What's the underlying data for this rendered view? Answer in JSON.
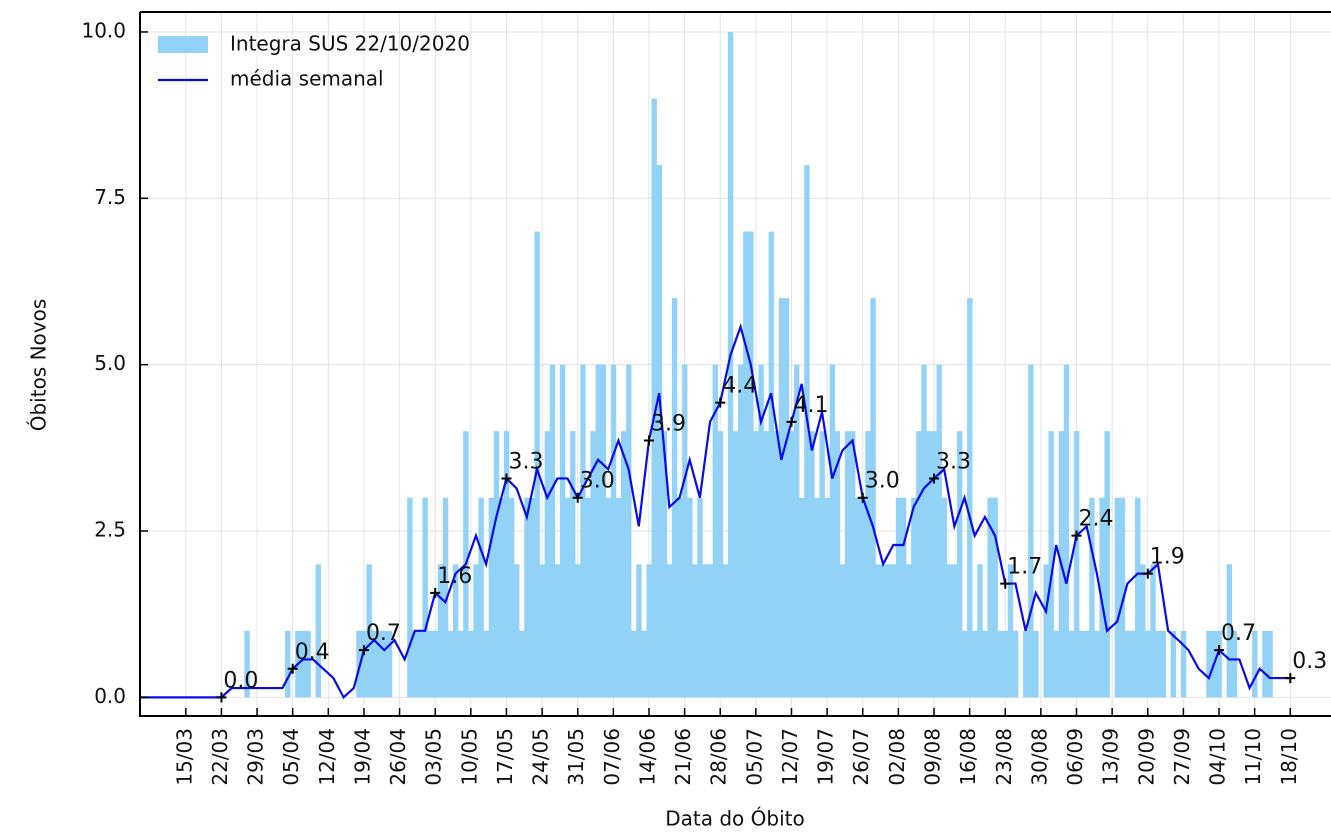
{
  "chart_data": {
    "type": "bar_line",
    "xlabel": "Data do Óbito",
    "ylabel": "Óbitos Novos",
    "xlim": [
      66,
      300
    ],
    "ylim": [
      -0.28,
      10.3
    ],
    "xticks": [
      {
        "value": 75,
        "label": "15/03"
      },
      {
        "value": 82,
        "label": "22/03"
      },
      {
        "value": 89,
        "label": "29/03"
      },
      {
        "value": 96,
        "label": "05/04"
      },
      {
        "value": 103,
        "label": "12/04"
      },
      {
        "value": 110,
        "label": "19/04"
      },
      {
        "value": 117,
        "label": "26/04"
      },
      {
        "value": 124,
        "label": "03/05"
      },
      {
        "value": 131,
        "label": "10/05"
      },
      {
        "value": 138,
        "label": "17/05"
      },
      {
        "value": 145,
        "label": "24/05"
      },
      {
        "value": 152,
        "label": "31/05"
      },
      {
        "value": 159,
        "label": "07/06"
      },
      {
        "value": 166,
        "label": "14/06"
      },
      {
        "value": 173,
        "label": "21/06"
      },
      {
        "value": 180,
        "label": "28/06"
      },
      {
        "value": 187,
        "label": "05/07"
      },
      {
        "value": 194,
        "label": "12/07"
      },
      {
        "value": 201,
        "label": "19/07"
      },
      {
        "value": 208,
        "label": "26/07"
      },
      {
        "value": 215,
        "label": "02/08"
      },
      {
        "value": 222,
        "label": "09/08"
      },
      {
        "value": 229,
        "label": "16/08"
      },
      {
        "value": 236,
        "label": "23/08"
      },
      {
        "value": 243,
        "label": "30/08"
      },
      {
        "value": 250,
        "label": "06/09"
      },
      {
        "value": 257,
        "label": "13/09"
      },
      {
        "value": 264,
        "label": "20/09"
      },
      {
        "value": 271,
        "label": "27/09"
      },
      {
        "value": 278,
        "label": "04/10"
      },
      {
        "value": 285,
        "label": "11/10"
      },
      {
        "value": 292,
        "label": "18/10"
      }
    ],
    "yticks": [
      {
        "value": 0,
        "label": "0.0"
      },
      {
        "value": 2.5,
        "label": "2.5"
      },
      {
        "value": 5,
        "label": "5.0"
      },
      {
        "value": 7.5,
        "label": "7.5"
      },
      {
        "value": 10,
        "label": "10.0"
      }
    ],
    "grid": true,
    "legend": "upper left",
    "bars": {
      "name": "Integra SUS 22/10/2020",
      "color": "#92d2f7",
      "x0": 82,
      "values": [
        0,
        0,
        0,
        0,
        0,
        1,
        0,
        0,
        0,
        0,
        0,
        0,
        0,
        1,
        0,
        1,
        1,
        1,
        0,
        2,
        0,
        0,
        0,
        0,
        0,
        0,
        0,
        1,
        1,
        2,
        1,
        1,
        1,
        1,
        0,
        0,
        0,
        3,
        1,
        1,
        3,
        1,
        1,
        2,
        3,
        1,
        2,
        1,
        4,
        1,
        2,
        3,
        1,
        3,
        4,
        3,
        4,
        3,
        2,
        1,
        3,
        3,
        7,
        2,
        4,
        5,
        2,
        5,
        3,
        4,
        2,
        5,
        3,
        4,
        5,
        5,
        3,
        5,
        3,
        4,
        5,
        1,
        2,
        1,
        2,
        9,
        8,
        4,
        2,
        6,
        3,
        5,
        3,
        2,
        3,
        2,
        2,
        5,
        4,
        2,
        10,
        4,
        5,
        7,
        7,
        4,
        5,
        4,
        7,
        4,
        6,
        6,
        4,
        5,
        3,
        8,
        4,
        3,
        4,
        3,
        5,
        4,
        2,
        4,
        4,
        3,
        3,
        4,
        6,
        2,
        2,
        2,
        2,
        3,
        3,
        2,
        3,
        4,
        5,
        4,
        4,
        5,
        3,
        2,
        2,
        4,
        1,
        6,
        1,
        2,
        1,
        3,
        3,
        1,
        1,
        2,
        1,
        0,
        1,
        5,
        1,
        0,
        2,
        4,
        1,
        4,
        5,
        1,
        4,
        1,
        1,
        3,
        1,
        3,
        4,
        0,
        3,
        3,
        1,
        1,
        3,
        2,
        1,
        2,
        1,
        1,
        0,
        1,
        0,
        1,
        0,
        0,
        0,
        0,
        1,
        1,
        1,
        0,
        2,
        1,
        0,
        0,
        0,
        1,
        0,
        1,
        1,
        0,
        0,
        0,
        0
      ]
    },
    "series": [
      {
        "name": "média  semanal",
        "color": "#0a0aee",
        "x": [
          66,
          82,
          84,
          86,
          88,
          90,
          92,
          94,
          96,
          98,
          100,
          102,
          104,
          106,
          108,
          110,
          112,
          114,
          116,
          118,
          120,
          122,
          124,
          126,
          128,
          130,
          132,
          134,
          136,
          138,
          140,
          142,
          144,
          146,
          148,
          150,
          152,
          154,
          156,
          158,
          160,
          162,
          164,
          166,
          168,
          170,
          172,
          174,
          176,
          178,
          180,
          182,
          184,
          186,
          188,
          190,
          192,
          194,
          196,
          198,
          200,
          202,
          204,
          206,
          208,
          210,
          212,
          214,
          216,
          218,
          220,
          222,
          224,
          226,
          228,
          230,
          232,
          234,
          236,
          238,
          240,
          242,
          244,
          246,
          248,
          250,
          252,
          254,
          256,
          258,
          260,
          262,
          264,
          266,
          268,
          270,
          272,
          274,
          276,
          278,
          280,
          282,
          284,
          286,
          288,
          290,
          292
        ],
        "values": [
          0,
          0,
          0.14,
          0.14,
          0.14,
          0.14,
          0.14,
          0.14,
          0.43,
          0.57,
          0.57,
          0.43,
          0.29,
          0,
          0.14,
          0.71,
          0.86,
          0.71,
          0.86,
          0.57,
          1.0,
          1.0,
          1.57,
          1.43,
          1.86,
          2.0,
          2.43,
          2.0,
          2.71,
          3.29,
          3.14,
          2.71,
          3.43,
          3.0,
          3.29,
          3.29,
          3.0,
          3.29,
          3.57,
          3.43,
          3.86,
          3.43,
          2.57,
          3.86,
          4.57,
          2.86,
          3.0,
          3.57,
          3.0,
          4.14,
          4.43,
          5.14,
          5.57,
          5.0,
          4.14,
          4.57,
          3.57,
          4.14,
          4.71,
          3.71,
          4.29,
          3.29,
          3.71,
          3.86,
          3.0,
          2.57,
          2.0,
          2.29,
          2.29,
          2.86,
          3.14,
          3.29,
          3.43,
          2.57,
          3.0,
          2.43,
          2.71,
          2.43,
          1.71,
          1.71,
          1.0,
          1.57,
          1.29,
          2.29,
          1.71,
          2.43,
          2.57,
          1.86,
          1.0,
          1.14,
          1.71,
          1.86,
          1.86,
          2.0,
          1.0,
          0.86,
          0.71,
          0.43,
          0.29,
          0.71,
          0.57,
          0.57,
          0.14,
          0.43,
          0.29,
          0.29,
          0.29
        ]
      }
    ],
    "annotations": [
      {
        "x": 82,
        "y": 0,
        "label": "0.0"
      },
      {
        "x": 96,
        "y": 0.43,
        "label": "0.4"
      },
      {
        "x": 110,
        "y": 0.71,
        "label": "0.7"
      },
      {
        "x": 124,
        "y": 1.57,
        "label": "1.6"
      },
      {
        "x": 138,
        "y": 3.29,
        "label": "3.3"
      },
      {
        "x": 152,
        "y": 3.0,
        "label": "3.0"
      },
      {
        "x": 166,
        "y": 3.86,
        "label": "3.9"
      },
      {
        "x": 180,
        "y": 4.43,
        "label": "4.4"
      },
      {
        "x": 194,
        "y": 4.14,
        "label": "4.1"
      },
      {
        "x": 208,
        "y": 3.0,
        "label": "3.0"
      },
      {
        "x": 222,
        "y": 3.29,
        "label": "3.3"
      },
      {
        "x": 236,
        "y": 1.71,
        "label": "1.7"
      },
      {
        "x": 250,
        "y": 2.43,
        "label": "2.4"
      },
      {
        "x": 264,
        "y": 1.86,
        "label": "1.9"
      },
      {
        "x": 278,
        "y": 0.71,
        "label": "0.7"
      },
      {
        "x": 292,
        "y": 0.29,
        "label": "0.3"
      }
    ]
  }
}
